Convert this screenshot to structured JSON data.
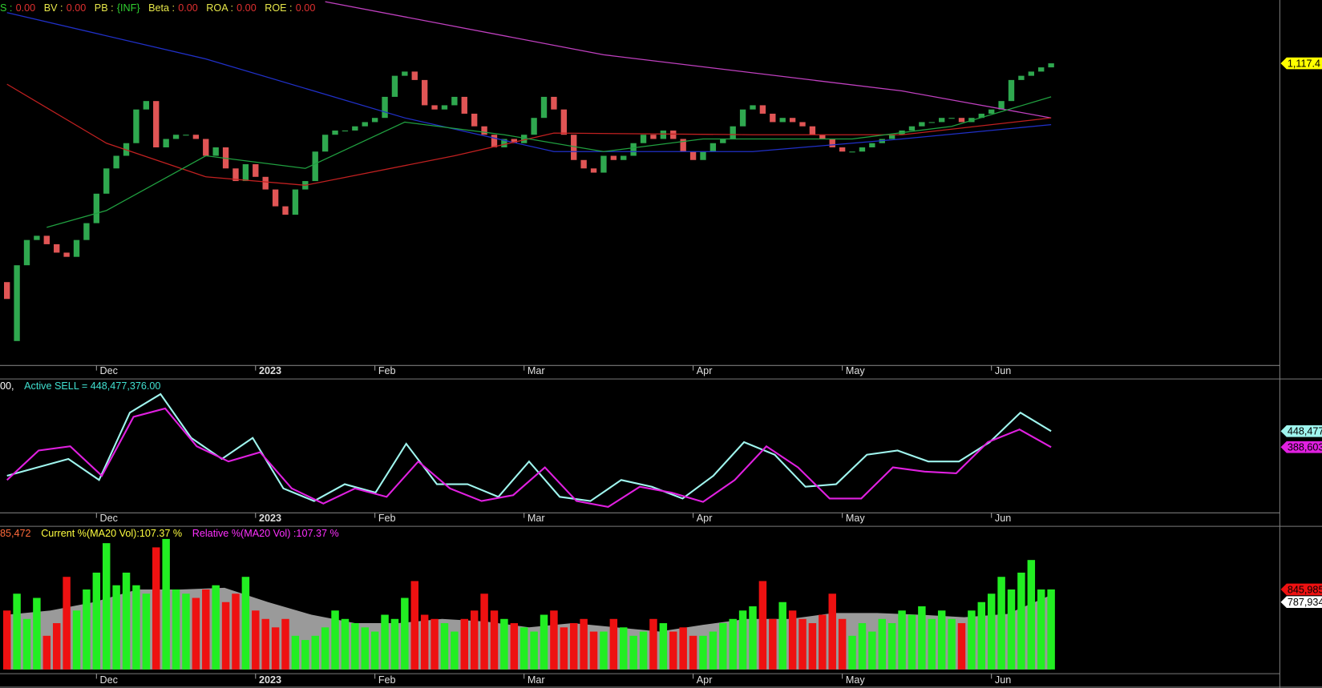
{
  "chart_data": [
    {
      "type": "candlestick",
      "header": [
        {
          "text": "S :",
          "color": "#30d030"
        },
        {
          "text": "0.00",
          "color": "#e03030"
        },
        {
          "text": "BV   :",
          "color": "#e8e84a"
        },
        {
          "text": "0.00",
          "color": "#e03030"
        },
        {
          "text": "PB :",
          "color": "#e8e84a"
        },
        {
          "text": "{INF}",
          "color": "#30d030"
        },
        {
          "text": "Beta :",
          "color": "#e8e84a"
        },
        {
          "text": "0.00",
          "color": "#e03030"
        },
        {
          "text": "ROA :",
          "color": "#e8e84a"
        },
        {
          "text": "0.00",
          "color": "#e03030"
        },
        {
          "text": "ROE :",
          "color": "#e8e84a"
        },
        {
          "text": "0.00",
          "color": "#e03030"
        }
      ],
      "open": [
        987.5,
        952.5,
        997.5,
        1012.5,
        1015,
        1010,
        1005,
        1002.5,
        1012.5,
        1022.5,
        1040,
        1055,
        1062.5,
        1070,
        1090,
        1095,
        1067.5,
        1072.5,
        1075,
        1075,
        1072.5,
        1062.5,
        1067.5,
        1055,
        1047.5,
        1057.5,
        1050,
        1042.5,
        1032.5,
        1027.5,
        1042.5,
        1047.5,
        1065,
        1075,
        1077.5,
        1077.5,
        1080,
        1082.5,
        1085,
        1097.5,
        1110,
        1112.5,
        1107.5,
        1092.5,
        1090,
        1092.5,
        1097.5,
        1087.5,
        1080,
        1075,
        1067.5,
        1072.5,
        1070,
        1075,
        1085,
        1097.5,
        1090,
        1075,
        1060,
        1055,
        1052.5,
        1062.5,
        1060,
        1062.5,
        1070,
        1075,
        1072.5,
        1077.5,
        1072.5,
        1065,
        1060,
        1065,
        1070,
        1072.5,
        1080,
        1090,
        1092.5,
        1087.5,
        1082.5,
        1085,
        1082.5,
        1080,
        1075,
        1072.5,
        1067.5,
        1065,
        1065,
        1067.5,
        1070,
        1072.5,
        1075,
        1077.5,
        1080,
        1082.5,
        1082.5,
        1085,
        1085,
        1082.5,
        1085,
        1087.5,
        1090,
        1095,
        1107.5,
        1110,
        1112.5,
        1115
      ],
      "close": [
        977.5,
        997.5,
        1012.5,
        1015,
        1010,
        1005,
        1002.5,
        1012.5,
        1022.5,
        1040,
        1055,
        1062.5,
        1070,
        1090,
        1095,
        1067.5,
        1072.5,
        1075,
        1075,
        1072.5,
        1062.5,
        1067.5,
        1055,
        1047.5,
        1057.5,
        1050,
        1042.5,
        1032.5,
        1027.5,
        1042.5,
        1047.5,
        1065,
        1075,
        1077.5,
        1077.5,
        1080,
        1082.5,
        1085,
        1097.5,
        1110,
        1112.5,
        1107.5,
        1092.5,
        1090,
        1092.5,
        1097.5,
        1087.5,
        1080,
        1075,
        1067.5,
        1072.5,
        1070,
        1075,
        1085,
        1097.5,
        1090,
        1075,
        1060,
        1055,
        1052.5,
        1062.5,
        1060,
        1062.5,
        1070,
        1075,
        1072.5,
        1077.5,
        1072.5,
        1065,
        1060,
        1065,
        1070,
        1072.5,
        1080,
        1090,
        1092.5,
        1087.5,
        1082.5,
        1085,
        1082.5,
        1080,
        1075,
        1072.5,
        1067.5,
        1065,
        1065,
        1067.5,
        1070,
        1072.5,
        1075,
        1077.5,
        1080,
        1082.5,
        1082.5,
        1085,
        1085,
        1082.5,
        1085,
        1087.5,
        1090,
        1095,
        1107.5,
        1110,
        1112.5,
        1115,
        1117.4
      ],
      "up_color": "#2fa84f",
      "down_color": "#e05555",
      "series": [
        {
          "color": "#c040c0",
          "x": [
            32,
            60,
            90,
            105
          ],
          "values": [
            1154,
            1122.5,
            1101,
            1085
          ]
        },
        {
          "color": "#2030c8",
          "x": [
            0,
            20,
            40,
            55,
            75,
            90,
            105
          ],
          "values": [
            1147.5,
            1120,
            1085,
            1065,
            1065,
            1072.5,
            1081
          ]
        },
        {
          "color": "#c02020",
          "x": [
            0,
            10,
            20,
            30,
            45,
            55,
            75,
            90,
            105
          ],
          "values": [
            1105,
            1070,
            1050,
            1045,
            1062.5,
            1076,
            1075,
            1075,
            1085
          ]
        },
        {
          "color": "#20a040",
          "x": [
            4,
            10,
            20,
            30,
            40,
            50,
            60,
            70,
            85,
            95,
            105
          ],
          "values": [
            1020,
            1030,
            1062.5,
            1055,
            1082.5,
            1075,
            1065,
            1072.5,
            1072.5,
            1080,
            1097.5
          ]
        }
      ],
      "xlim": [
        -0.7,
        128
      ],
      "ylim": [
        939,
        1155
      ],
      "xticks": [
        {
          "value": 9,
          "label": "Dec"
        },
        {
          "value": 25,
          "label": "2023"
        },
        {
          "value": 37,
          "label": "Feb"
        },
        {
          "value": 52,
          "label": "Mar"
        },
        {
          "value": 69,
          "label": "Apr"
        },
        {
          "value": 84,
          "label": "May"
        },
        {
          "value": 99,
          "label": "Jun"
        }
      ],
      "yticks": [
        {
          "value": 1117.4,
          "label": "1,117.4"
        }
      ],
      "tag_colors": [
        "#ffff00"
      ]
    },
    {
      "type": "line",
      "header": [
        {
          "text": "00,",
          "color": "#ffffff"
        },
        {
          "text": "Active SELL = 448,477,376.00",
          "color": "#40e0d0"
        }
      ],
      "series": [
        {
          "color": "#9ff5ee",
          "values": [
            281500,
            313000,
            344500,
            265700,
            517800,
            587100,
            423300,
            344500,
            423300,
            234200,
            187000,
            250000,
            218500,
            401200,
            250000,
            250000,
            202700,
            335100,
            202700,
            187000,
            265700,
            240500,
            196500,
            281500,
            407500,
            360300,
            240500,
            250000,
            360300,
            376000,
            335100,
            335100,
            407500,
            517800,
            448477
          ]
        },
        {
          "color": "#e020e0",
          "values": [
            265700,
            376000,
            391800,
            281500,
            502100,
            533500,
            391800,
            335100,
            369700,
            234200,
            177500,
            234200,
            202700,
            335100,
            234200,
            187000,
            209000,
            313000,
            187000,
            164900,
            240500,
            218500,
            183800,
            265700,
            391800,
            313000,
            196500,
            196500,
            313000,
            297300,
            290900,
            407500,
            454800,
            388603
          ]
        }
      ],
      "xlim": [
        -0.7,
        128
      ],
      "ylim": [
        146000,
        637500
      ],
      "xticks": [
        {
          "value": 9,
          "label": "Dec"
        },
        {
          "value": 25,
          "label": "2023"
        },
        {
          "value": 37,
          "label": "Feb"
        },
        {
          "value": 52,
          "label": "Mar"
        },
        {
          "value": 69,
          "label": "Apr"
        },
        {
          "value": 84,
          "label": "May"
        },
        {
          "value": 99,
          "label": "Jun"
        }
      ],
      "yticks": [
        {
          "value": 448477,
          "label": "448,477"
        },
        {
          "value": 388603,
          "label": "388,603"
        }
      ],
      "tag_colors": [
        "#9ff5ee",
        "#e020e0"
      ]
    },
    {
      "type": "bar",
      "header": [
        {
          "text": "85,472",
          "color": "#ff6a3a"
        },
        {
          "text": "Current %(MA20 Vol):107.37 %",
          "color": "#ffff40"
        },
        {
          "text": "Relative %(MA20 Vol) :107.37 %",
          "color": "#ff30ff"
        }
      ],
      "values": [
        623000,
        801000,
        534000,
        756500,
        356000,
        489500,
        979000,
        623000,
        845500,
        1023500,
        1335000,
        890000,
        1023500,
        890000,
        801000,
        1290500,
        1379500,
        845500,
        801000,
        756500,
        845500,
        890000,
        712000,
        801000,
        979000,
        623000,
        534000,
        445000,
        534000,
        356000,
        311500,
        356000,
        445000,
        623000,
        534000,
        489500,
        445000,
        400500,
        578500,
        534000,
        756500,
        934500,
        578500,
        534000,
        489500,
        400500,
        534000,
        623000,
        801000,
        623000,
        534000,
        489500,
        445000,
        400500,
        578500,
        623000,
        445000,
        489500,
        534000,
        400500,
        400500,
        534000,
        445000,
        356000,
        400500,
        534000,
        489500,
        400500,
        445000,
        356000,
        356000,
        400500,
        489500,
        534000,
        623000,
        667500,
        934500,
        534000,
        712000,
        623000,
        534000,
        489500,
        578500,
        801000,
        534000,
        356000,
        489500,
        400500,
        534000,
        489500,
        623000,
        578500,
        667500,
        534000,
        623000,
        534000,
        489500,
        623000,
        712000,
        801000,
        979000,
        845500,
        1023500,
        1157000,
        845500,
        845985
      ],
      "up_color": "#22ee22",
      "down_color": "#ee1111",
      "ma": {
        "color": "#9a9a9a",
        "values": [
          578500,
          623000,
          712000,
          845500,
          845500,
          863300,
          712000,
          578500,
          489500,
          489500,
          534000,
          507300,
          445000,
          489500,
          445000,
          400500,
          471700,
          534000,
          534000,
          596300,
          596300,
          578500,
          551800,
          587400,
          787934
        ]
      },
      "xlim": [
        -0.7,
        128
      ],
      "ylim": [
        0,
        1486300
      ],
      "xticks": [
        {
          "value": 9,
          "label": "Dec"
        },
        {
          "value": 25,
          "label": "2023"
        },
        {
          "value": 37,
          "label": "Feb"
        },
        {
          "value": 52,
          "label": "Mar"
        },
        {
          "value": 69,
          "label": "Apr"
        },
        {
          "value": 84,
          "label": "May"
        },
        {
          "value": 99,
          "label": "Jun"
        }
      ],
      "yticks": [
        {
          "value": 845985,
          "label": "845,985"
        },
        {
          "value": 787934,
          "label": "787,934"
        }
      ],
      "tag_colors": [
        "#ee1111",
        "#ffffff"
      ]
    }
  ]
}
